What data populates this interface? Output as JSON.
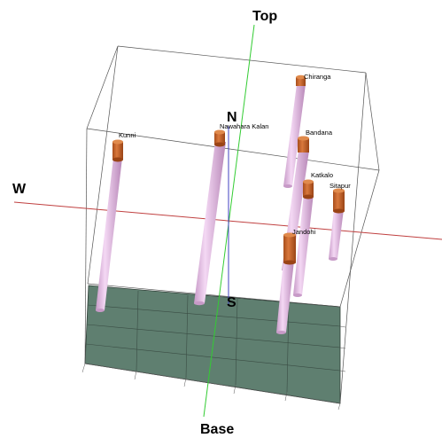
{
  "compass": {
    "top": "Top",
    "base": "Base",
    "north": "N",
    "south": "S",
    "west": "W"
  },
  "wells": [
    {
      "name": "Kunni",
      "icon": "well-cylinder-icon"
    },
    {
      "name": "Nawahara Kalan",
      "icon": "well-cylinder-icon"
    },
    {
      "name": "Chiranga",
      "icon": "well-cylinder-icon"
    },
    {
      "name": "Bandana",
      "icon": "well-cylinder-icon"
    },
    {
      "name": "Katkalo",
      "icon": "well-cylinder-icon"
    },
    {
      "name": "Sitapur",
      "icon": "well-cylinder-icon"
    },
    {
      "name": "Jandohi",
      "icon": "well-cylinder-icon"
    }
  ],
  "colors": {
    "well_shaft": "#e6bde6",
    "well_cap": "#c0622a",
    "base_block": "#5f7f70",
    "axis_vertical": "#33cc33",
    "axis_ew": "#c04040",
    "axis_ns": "#4040c0"
  }
}
